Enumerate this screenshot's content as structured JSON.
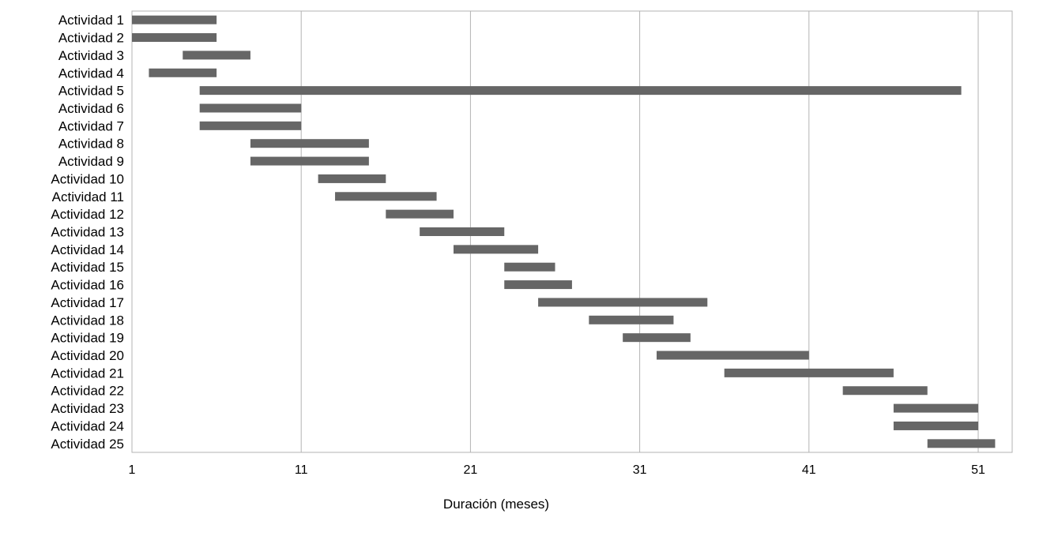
{
  "chart_data": {
    "type": "bar",
    "orientation": "horizontal",
    "title": "",
    "xlabel": "Duración (meses)",
    "ylabel": "",
    "xlim": [
      1,
      53
    ],
    "xticks": [
      1,
      11,
      21,
      31,
      41,
      51
    ],
    "grid": true,
    "legend": "none",
    "bar_color": "#666666",
    "grid_color": "#b3b3b3",
    "categories": [
      "Actividad 1",
      "Actividad 2",
      "Actividad 3",
      "Actividad 4",
      "Actividad 5",
      "Actividad 6",
      "Actividad 7",
      "Actividad 8",
      "Actividad 9",
      "Actividad 10",
      "Actividad 11",
      "Actividad 12",
      "Actividad 13",
      "Actividad 14",
      "Actividad 15",
      "Actividad 16",
      "Actividad 17",
      "Actividad 18",
      "Actividad 19",
      "Actividad 20",
      "Actividad 21",
      "Actividad 22",
      "Actividad 23",
      "Actividad 24",
      "Actividad 25"
    ],
    "bars": [
      {
        "start": 1,
        "end": 6
      },
      {
        "start": 1,
        "end": 6
      },
      {
        "start": 4,
        "end": 8
      },
      {
        "start": 2,
        "end": 6
      },
      {
        "start": 5,
        "end": 50
      },
      {
        "start": 5,
        "end": 11
      },
      {
        "start": 5,
        "end": 11
      },
      {
        "start": 8,
        "end": 15
      },
      {
        "start": 8,
        "end": 15
      },
      {
        "start": 12,
        "end": 16
      },
      {
        "start": 13,
        "end": 19
      },
      {
        "start": 16,
        "end": 20
      },
      {
        "start": 18,
        "end": 23
      },
      {
        "start": 20,
        "end": 25
      },
      {
        "start": 23,
        "end": 26
      },
      {
        "start": 23,
        "end": 27
      },
      {
        "start": 25,
        "end": 35
      },
      {
        "start": 28,
        "end": 33
      },
      {
        "start": 30,
        "end": 34
      },
      {
        "start": 32,
        "end": 41
      },
      {
        "start": 36,
        "end": 46
      },
      {
        "start": 43,
        "end": 48
      },
      {
        "start": 46,
        "end": 51
      },
      {
        "start": 46,
        "end": 51
      },
      {
        "start": 48,
        "end": 52
      }
    ]
  }
}
